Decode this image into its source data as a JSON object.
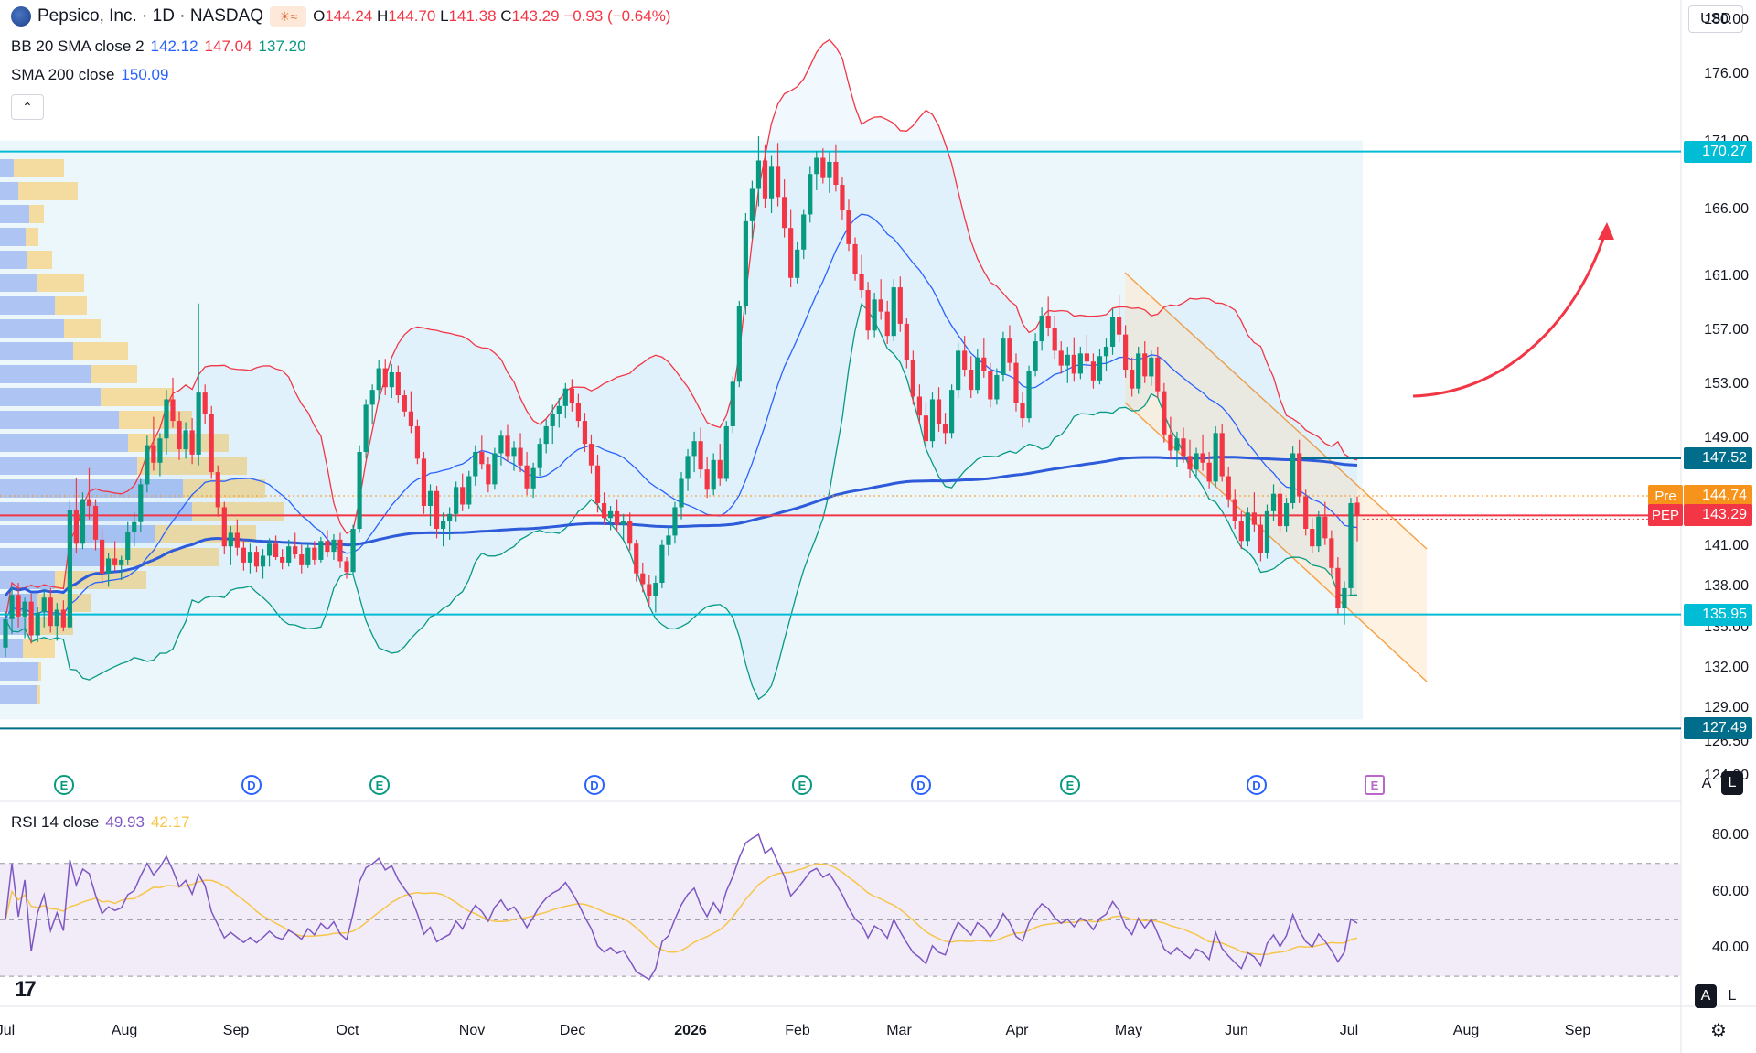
{
  "header": {
    "title": "Pepsico, Inc. · 1D · NASDAQ",
    "ohlc": {
      "o_label": "O",
      "o": "144.24",
      "h_label": "H",
      "h": "144.70",
      "l_label": "L",
      "l": "141.38",
      "c_label": "C",
      "c": "143.29",
      "change": "−0.93 (−0.64%)"
    }
  },
  "indicators": {
    "bb": {
      "label": "BB 20 SMA close 2",
      "basis": "142.12",
      "upper": "147.04",
      "lower": "137.20"
    },
    "sma": {
      "label": "SMA 200 close",
      "value": "150.09"
    },
    "rsi": {
      "label": "RSI 14 close",
      "value": "49.93",
      "ma": "42.17"
    }
  },
  "currency": "USD",
  "toggles": {
    "auto": "A",
    "log": "L"
  },
  "price_axis": [
    "180.00",
    "176.00",
    "171.00",
    "166.00",
    "161.00",
    "157.00",
    "153.00",
    "149.00",
    "141.00",
    "138.00",
    "135.00",
    "132.00",
    "129.00",
    "126.50",
    "124.00"
  ],
  "price_tags": [
    {
      "value": "170.27",
      "color": "#00bcd4"
    },
    {
      "value": "147.52",
      "color": "#006e8a"
    },
    {
      "value": "144.74",
      "color": "#f7931a",
      "prefix": "Pre"
    },
    {
      "value": "143.29",
      "color": "#f23645",
      "prefix": "PEP"
    },
    {
      "value": "135.95",
      "color": "#00bcd4"
    },
    {
      "value": "127.49",
      "color": "#006e8a"
    }
  ],
  "rsi_axis": [
    "80.00",
    "60.00",
    "40.00"
  ],
  "time_axis": [
    "Jul",
    "Aug",
    "Sep",
    "Oct",
    "Nov",
    "Dec",
    "2026",
    "Feb",
    "Mar",
    "Apr",
    "May",
    "Jun",
    "Jul",
    "Aug",
    "Sep"
  ],
  "events": [
    "E",
    "D",
    "E",
    "D",
    "E",
    "D",
    "E",
    "D",
    "E"
  ],
  "chart_data": {
    "type": "candlestick",
    "symbol": "PEP",
    "title": "Pepsico, Inc. · 1D · NASDAQ",
    "y_range": [
      122.5,
      181.5
    ],
    "rsi_range": [
      20,
      90
    ],
    "levels": {
      "resistance": 170.27,
      "level_2": 147.52,
      "support": 135.95,
      "low": 127.49,
      "last": 143.29,
      "premarket": 144.74
    },
    "months": [
      "Jul",
      "Aug",
      "Sep",
      "Oct",
      "Nov",
      "Dec",
      "2026",
      "Feb",
      "Mar",
      "Apr",
      "May",
      "Jun",
      "Jul",
      "Aug",
      "Sep"
    ],
    "candles": [
      [
        133.5,
        136.2,
        132.8,
        135.6
      ],
      [
        135.6,
        138.0,
        134.5,
        137.4
      ],
      [
        137.4,
        138.3,
        135.0,
        135.8
      ],
      [
        135.8,
        137.2,
        134.2,
        136.9
      ],
      [
        136.9,
        137.5,
        133.8,
        134.4
      ],
      [
        134.4,
        136.5,
        133.9,
        136.1
      ],
      [
        136.1,
        137.8,
        135.0,
        137.2
      ],
      [
        137.2,
        137.9,
        134.6,
        135.1
      ],
      [
        135.1,
        136.8,
        134.0,
        136.3
      ],
      [
        136.3,
        137.0,
        134.7,
        135.0
      ],
      [
        135.0,
        144.4,
        134.8,
        143.7
      ],
      [
        143.7,
        146.1,
        140.5,
        141.2
      ],
      [
        141.2,
        145.0,
        140.8,
        144.5
      ],
      [
        144.5,
        146.8,
        143.0,
        144.0
      ],
      [
        144.0,
        144.5,
        140.7,
        141.5
      ],
      [
        141.5,
        142.3,
        138.2,
        139.0
      ],
      [
        139.0,
        140.5,
        138.0,
        140.1
      ],
      [
        140.1,
        141.4,
        139.2,
        139.6
      ],
      [
        139.6,
        140.3,
        138.5,
        140.0
      ],
      [
        140.0,
        142.8,
        139.6,
        142.1
      ],
      [
        142.1,
        143.5,
        141.0,
        142.8
      ],
      [
        142.8,
        146.0,
        142.1,
        145.6
      ],
      [
        145.6,
        149.2,
        145.0,
        148.5
      ],
      [
        148.5,
        150.6,
        146.6,
        147.2
      ],
      [
        147.2,
        149.4,
        146.2,
        149.0
      ],
      [
        149.0,
        152.6,
        147.8,
        151.9
      ],
      [
        151.9,
        153.5,
        149.8,
        150.3
      ],
      [
        150.3,
        151.0,
        147.4,
        148.2
      ],
      [
        148.2,
        150.2,
        147.5,
        149.6
      ],
      [
        149.6,
        150.5,
        147.1,
        147.8
      ],
      [
        147.8,
        159.0,
        147.0,
        152.4
      ],
      [
        152.4,
        153.0,
        150.1,
        150.8
      ],
      [
        150.8,
        151.4,
        146.0,
        146.5
      ],
      [
        146.5,
        147.0,
        143.2,
        143.9
      ],
      [
        143.9,
        144.3,
        140.4,
        141.0
      ],
      [
        141.0,
        142.5,
        139.6,
        142.0
      ],
      [
        142.0,
        143.0,
        140.3,
        140.9
      ],
      [
        140.9,
        141.5,
        139.2,
        139.8
      ],
      [
        139.8,
        141.2,
        139.0,
        140.6
      ],
      [
        140.6,
        141.0,
        139.1,
        139.5
      ],
      [
        139.5,
        140.8,
        138.6,
        140.3
      ],
      [
        140.3,
        141.6,
        139.5,
        141.2
      ],
      [
        141.2,
        141.8,
        140.0,
        140.2
      ],
      [
        140.2,
        140.8,
        139.3,
        139.8
      ],
      [
        139.8,
        141.5,
        139.5,
        141.0
      ],
      [
        141.0,
        142.0,
        140.1,
        140.4
      ],
      [
        140.4,
        141.1,
        139.0,
        139.6
      ],
      [
        139.6,
        141.3,
        139.4,
        140.9
      ],
      [
        140.9,
        141.4,
        139.6,
        140.0
      ],
      [
        140.0,
        141.7,
        139.8,
        141.4
      ],
      [
        141.4,
        142.2,
        140.2,
        140.6
      ],
      [
        140.6,
        141.9,
        140.0,
        141.5
      ],
      [
        141.5,
        142.0,
        139.4,
        139.9
      ],
      [
        139.9,
        140.2,
        138.6,
        139.1
      ],
      [
        139.1,
        142.6,
        138.9,
        142.3
      ],
      [
        142.3,
        148.5,
        142.0,
        148.0
      ],
      [
        148.0,
        151.9,
        147.5,
        151.5
      ],
      [
        151.5,
        153.0,
        150.1,
        152.6
      ],
      [
        152.6,
        154.8,
        151.9,
        154.2
      ],
      [
        154.2,
        154.9,
        152.2,
        152.8
      ],
      [
        152.8,
        154.5,
        152.0,
        153.9
      ],
      [
        153.9,
        154.4,
        151.6,
        152.2
      ],
      [
        152.2,
        152.6,
        150.6,
        151.0
      ],
      [
        151.0,
        152.5,
        149.4,
        149.9
      ],
      [
        149.9,
        150.4,
        147.1,
        147.5
      ],
      [
        147.5,
        148.0,
        143.4,
        144.0
      ],
      [
        144.0,
        145.6,
        142.5,
        145.1
      ],
      [
        145.1,
        145.5,
        141.6,
        142.3
      ],
      [
        142.3,
        143.5,
        141.0,
        142.9
      ],
      [
        142.9,
        143.9,
        141.5,
        143.4
      ],
      [
        143.4,
        145.8,
        142.8,
        145.4
      ],
      [
        145.4,
        146.4,
        143.6,
        144.1
      ],
      [
        144.1,
        146.6,
        143.8,
        146.2
      ],
      [
        146.2,
        148.5,
        145.5,
        148.0
      ],
      [
        148.0,
        149.2,
        146.7,
        147.1
      ],
      [
        147.1,
        147.6,
        145.0,
        145.6
      ],
      [
        145.6,
        148.3,
        145.2,
        147.9
      ],
      [
        147.9,
        149.6,
        147.0,
        149.2
      ],
      [
        149.2,
        150.0,
        147.3,
        147.7
      ],
      [
        147.7,
        148.8,
        146.6,
        148.3
      ],
      [
        148.3,
        149.4,
        146.5,
        147.0
      ],
      [
        147.0,
        148.0,
        144.8,
        145.3
      ],
      [
        145.3,
        147.2,
        144.6,
        146.8
      ],
      [
        146.8,
        149.0,
        146.2,
        148.6
      ],
      [
        148.6,
        150.4,
        147.9,
        149.9
      ],
      [
        149.9,
        151.5,
        148.6,
        150.8
      ],
      [
        150.8,
        152.0,
        149.8,
        151.4
      ],
      [
        151.4,
        153.1,
        150.5,
        152.7
      ],
      [
        152.7,
        153.4,
        151.0,
        151.6
      ],
      [
        151.6,
        152.3,
        149.8,
        150.3
      ],
      [
        150.3,
        150.9,
        148.0,
        148.6
      ],
      [
        148.6,
        149.3,
        146.4,
        147.0
      ],
      [
        147.0,
        147.8,
        143.5,
        144.2
      ],
      [
        144.2,
        145.0,
        142.6,
        143.1
      ],
      [
        143.1,
        144.0,
        142.2,
        143.6
      ],
      [
        143.6,
        144.5,
        142.1,
        142.6
      ],
      [
        142.6,
        143.4,
        141.4,
        142.9
      ],
      [
        142.9,
        143.5,
        140.7,
        141.2
      ],
      [
        141.2,
        141.5,
        138.4,
        139.0
      ],
      [
        139.0,
        139.8,
        137.6,
        138.2
      ],
      [
        138.2,
        138.9,
        136.6,
        137.3
      ],
      [
        137.3,
        138.8,
        136.1,
        138.3
      ],
      [
        138.3,
        141.5,
        137.9,
        141.1
      ],
      [
        141.1,
        142.5,
        140.3,
        141.8
      ],
      [
        141.8,
        144.3,
        141.2,
        143.9
      ],
      [
        143.9,
        146.5,
        143.0,
        146.0
      ],
      [
        146.0,
        148.2,
        145.1,
        147.7
      ],
      [
        147.7,
        149.5,
        146.5,
        148.8
      ],
      [
        148.8,
        149.8,
        146.1,
        146.7
      ],
      [
        146.7,
        147.6,
        144.6,
        145.2
      ],
      [
        145.2,
        147.9,
        144.8,
        147.4
      ],
      [
        147.4,
        148.6,
        145.5,
        146.0
      ],
      [
        146.0,
        150.3,
        145.8,
        149.9
      ],
      [
        149.9,
        153.6,
        149.4,
        153.2
      ],
      [
        153.2,
        159.2,
        152.8,
        158.8
      ],
      [
        158.8,
        165.7,
        158.2,
        165.1
      ],
      [
        165.1,
        168.1,
        163.8,
        167.5
      ],
      [
        167.5,
        171.4,
        166.2,
        169.6
      ],
      [
        169.6,
        170.8,
        166.1,
        166.8
      ],
      [
        166.8,
        170.0,
        165.7,
        169.2
      ],
      [
        169.2,
        170.9,
        166.2,
        166.9
      ],
      [
        166.9,
        168.2,
        163.9,
        164.6
      ],
      [
        164.6,
        166.0,
        160.2,
        160.9
      ],
      [
        160.9,
        163.6,
        160.5,
        163.0
      ],
      [
        163.0,
        166.0,
        162.3,
        165.6
      ],
      [
        165.6,
        169.2,
        165.0,
        168.6
      ],
      [
        168.6,
        170.3,
        167.4,
        169.8
      ],
      [
        169.8,
        170.5,
        167.9,
        168.3
      ],
      [
        168.3,
        170.2,
        167.2,
        169.5
      ],
      [
        169.5,
        170.8,
        167.3,
        167.8
      ],
      [
        167.8,
        168.4,
        165.2,
        165.9
      ],
      [
        165.9,
        166.7,
        162.9,
        163.4
      ],
      [
        163.4,
        163.9,
        160.7,
        161.2
      ],
      [
        161.2,
        162.6,
        159.4,
        160.0
      ],
      [
        160.0,
        160.6,
        156.3,
        157.0
      ],
      [
        157.0,
        159.8,
        156.5,
        159.3
      ],
      [
        159.3,
        160.8,
        157.8,
        158.4
      ],
      [
        158.4,
        159.2,
        156.0,
        156.6
      ],
      [
        156.6,
        160.8,
        156.2,
        160.2
      ],
      [
        160.2,
        161.0,
        156.9,
        157.5
      ],
      [
        157.5,
        157.9,
        154.2,
        154.8
      ],
      [
        154.8,
        155.5,
        151.5,
        152.1
      ],
      [
        152.1,
        153.0,
        150.1,
        150.7
      ],
      [
        150.7,
        151.6,
        148.2,
        148.8
      ],
      [
        148.8,
        152.4,
        148.3,
        151.9
      ],
      [
        151.9,
        152.8,
        149.5,
        150.1
      ],
      [
        150.1,
        150.9,
        148.6,
        149.4
      ],
      [
        149.4,
        153.0,
        149.0,
        152.6
      ],
      [
        152.6,
        156.1,
        152.0,
        155.5
      ],
      [
        155.5,
        156.6,
        153.6,
        154.1
      ],
      [
        154.1,
        155.1,
        152.0,
        152.6
      ],
      [
        152.6,
        155.6,
        152.3,
        155.0
      ],
      [
        155.0,
        156.4,
        153.5,
        154.0
      ],
      [
        154.0,
        154.6,
        151.3,
        151.9
      ],
      [
        151.9,
        154.2,
        151.5,
        153.7
      ],
      [
        153.7,
        156.9,
        153.2,
        156.4
      ],
      [
        156.4,
        157.4,
        154.0,
        154.6
      ],
      [
        154.6,
        155.3,
        151.0,
        151.6
      ],
      [
        151.6,
        152.4,
        149.8,
        150.5
      ],
      [
        150.5,
        154.4,
        150.2,
        154.0
      ],
      [
        154.0,
        156.8,
        153.6,
        156.2
      ],
      [
        156.2,
        158.7,
        155.5,
        158.1
      ],
      [
        158.1,
        159.5,
        156.6,
        157.2
      ],
      [
        157.2,
        158.1,
        154.9,
        155.5
      ],
      [
        155.5,
        156.2,
        153.8,
        154.4
      ],
      [
        154.4,
        155.8,
        153.1,
        155.2
      ],
      [
        155.2,
        156.5,
        153.2,
        153.8
      ],
      [
        153.8,
        155.8,
        153.4,
        155.3
      ],
      [
        155.3,
        156.7,
        154.2,
        154.7
      ],
      [
        154.7,
        155.3,
        152.7,
        153.3
      ],
      [
        153.3,
        155.6,
        153.0,
        155.1
      ],
      [
        155.1,
        156.4,
        154.0,
        155.8
      ],
      [
        155.8,
        158.6,
        155.2,
        158.0
      ],
      [
        158.0,
        159.6,
        156.1,
        156.7
      ],
      [
        156.7,
        157.4,
        153.5,
        154.1
      ],
      [
        154.1,
        155.0,
        152.1,
        152.7
      ],
      [
        152.7,
        155.8,
        152.3,
        155.3
      ],
      [
        155.3,
        156.2,
        153.1,
        153.6
      ],
      [
        153.6,
        155.5,
        152.9,
        155.0
      ],
      [
        155.0,
        155.8,
        152.0,
        152.5
      ],
      [
        152.5,
        153.1,
        148.7,
        149.3
      ],
      [
        149.3,
        150.6,
        147.5,
        148.1
      ],
      [
        148.1,
        149.5,
        146.9,
        149.0
      ],
      [
        149.0,
        149.8,
        147.2,
        147.7
      ],
      [
        147.7,
        148.9,
        146.1,
        146.7
      ],
      [
        146.7,
        148.3,
        146.0,
        147.9
      ],
      [
        147.9,
        149.3,
        146.6,
        147.2
      ],
      [
        147.2,
        148.0,
        145.3,
        145.8
      ],
      [
        145.8,
        149.9,
        145.4,
        149.4
      ],
      [
        149.4,
        150.1,
        145.8,
        146.2
      ],
      [
        146.2,
        146.9,
        143.9,
        144.5
      ],
      [
        144.5,
        145.2,
        142.3,
        142.9
      ],
      [
        142.9,
        143.6,
        140.8,
        141.4
      ],
      [
        141.4,
        143.9,
        141.0,
        143.5
      ],
      [
        143.5,
        145.0,
        142.1,
        142.6
      ],
      [
        142.6,
        143.3,
        139.9,
        140.5
      ],
      [
        140.5,
        144.1,
        140.1,
        143.6
      ],
      [
        143.6,
        145.6,
        142.9,
        144.9
      ],
      [
        144.9,
        145.4,
        142.0,
        142.5
      ],
      [
        142.5,
        144.6,
        142.1,
        144.2
      ],
      [
        144.2,
        148.4,
        143.8,
        147.9
      ],
      [
        147.9,
        148.9,
        144.2,
        144.7
      ],
      [
        144.7,
        145.2,
        141.8,
        142.3
      ],
      [
        142.3,
        143.1,
        140.5,
        141.0
      ],
      [
        141.0,
        143.6,
        140.6,
        143.2
      ],
      [
        143.2,
        144.3,
        141.1,
        141.6
      ],
      [
        141.6,
        142.2,
        138.9,
        139.4
      ],
      [
        139.4,
        140.2,
        136.0,
        136.4
      ],
      [
        136.4,
        138.4,
        135.2,
        137.9
      ],
      [
        137.9,
        144.6,
        137.4,
        144.2
      ],
      [
        144.24,
        144.7,
        141.38,
        143.29
      ]
    ]
  }
}
